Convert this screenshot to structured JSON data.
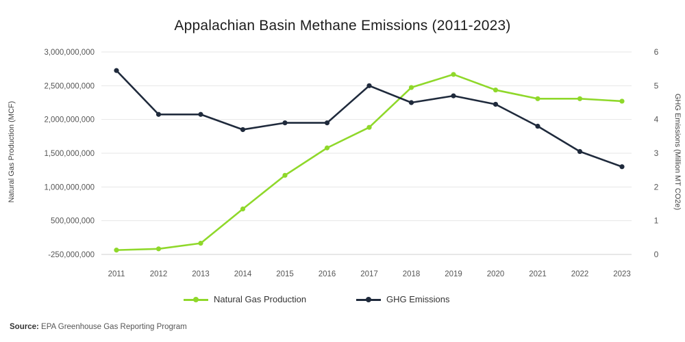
{
  "chart_data": {
    "type": "line",
    "title": "Appalachian Basin Methane Emissions (2011-2023)",
    "x": [
      "2011",
      "2012",
      "2013",
      "2014",
      "2015",
      "2016",
      "2017",
      "2018",
      "2019",
      "2020",
      "2021",
      "2022",
      "2023"
    ],
    "y_left": {
      "label": "Natural Gas Production (MCF)",
      "range": [
        -250000000,
        3000000000
      ],
      "ticks": [
        3000000000,
        2500000000,
        2000000000,
        1500000000,
        1000000000,
        500000000,
        -250000000
      ],
      "tick_labels": [
        "3,000,000,000",
        "2,500,000,000",
        "2,000,000,000",
        "1,500,000,000",
        "1,000,000,000",
        "500,000,000",
        "-250,000,000"
      ]
    },
    "y_right": {
      "label": "GHG Emissions (Million MT CO2e)",
      "range": [
        0,
        6
      ],
      "ticks": [
        6,
        5,
        4,
        3,
        2,
        1,
        0
      ],
      "tick_labels": [
        "6",
        "5",
        "4",
        "3",
        "2",
        "1",
        "0"
      ]
    },
    "series": [
      {
        "name": "Natural Gas Production",
        "axis": "left",
        "color": "#8fd82a",
        "values": [
          -180000000,
          -160000000,
          -70000000,
          480000000,
          1020000000,
          1460000000,
          1790000000,
          2430000000,
          2640000000,
          2390000000,
          2250000000,
          2250000000,
          2210000000
        ]
      },
      {
        "name": "GHG Emissions",
        "axis": "right",
        "color": "#1f2a3c",
        "values": [
          5.45,
          4.15,
          4.15,
          3.7,
          3.9,
          3.9,
          5.0,
          4.5,
          4.7,
          4.45,
          3.8,
          3.05,
          2.6
        ]
      }
    ],
    "grid": true,
    "legend": "bottom-center"
  },
  "source": {
    "label": "Source:",
    "text": "EPA Greenhouse Gas Reporting Program"
  }
}
